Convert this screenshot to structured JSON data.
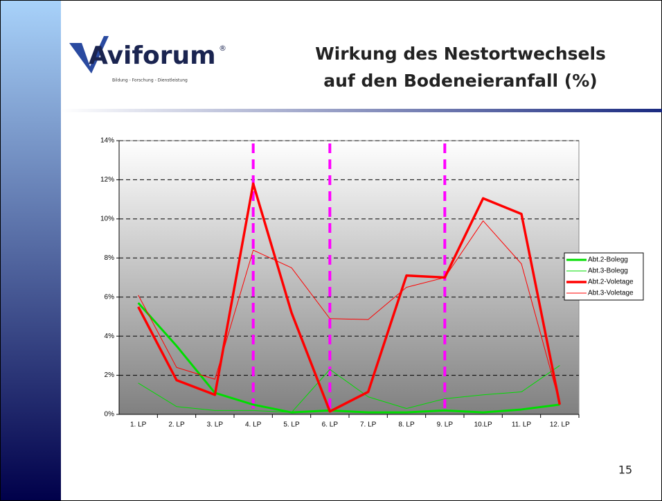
{
  "logo": {
    "name": "Aviforum",
    "mark": "®",
    "tagline": "Bildung - Forschung - Dienstleistung"
  },
  "page_number": "15",
  "chart_data": {
    "type": "line",
    "title": [
      "Wirkung des Nestortwechsels",
      "auf den Bodeneieranfall (%)"
    ],
    "categories": [
      "1. LP",
      "2. LP",
      "3. LP",
      "4. LP",
      "5. LP",
      "6. LP",
      "7. LP",
      "8. LP",
      "9. LP",
      "10.LP",
      "11. LP",
      "12. LP"
    ],
    "series": [
      {
        "name": "Abt.2-Bolegg",
        "color": "#00dd00",
        "line_width": 3,
        "values": [
          5.7,
          3.5,
          1.1,
          0.5,
          0.1,
          0.2,
          0.1,
          0.1,
          0.2,
          0.1,
          0.25,
          0.5
        ]
      },
      {
        "name": "Abt.3-Bolegg",
        "color": "#00dd00",
        "line_width": 1,
        "values": [
          1.6,
          0.4,
          0.2,
          0.2,
          0.1,
          2.3,
          0.9,
          0.3,
          0.8,
          1.0,
          1.15,
          2.5
        ]
      },
      {
        "name": "Abt.2-Voletage",
        "color": "#ff0000",
        "line_width": 3.5,
        "values": [
          5.5,
          1.75,
          1.0,
          11.8,
          5.2,
          0.15,
          1.15,
          7.1,
          7.0,
          11.05,
          10.25,
          0.5
        ]
      },
      {
        "name": "Abt.3-Voletage",
        "color": "#ff0000",
        "line_width": 1,
        "values": [
          6.1,
          2.4,
          1.8,
          8.4,
          7.5,
          4.9,
          4.85,
          6.5,
          7.0,
          9.9,
          7.7,
          0.55
        ]
      }
    ],
    "vertical_markers": [
      "4. LP",
      "6. LP",
      "9. LP"
    ],
    "marker_color": "#ff00ff",
    "ylim": [
      0,
      14
    ],
    "yticks": [
      {
        "value": 0,
        "label": "0%"
      },
      {
        "value": 2,
        "label": "2%"
      },
      {
        "value": 4,
        "label": "4%"
      },
      {
        "value": 6,
        "label": "6%"
      },
      {
        "value": 8,
        "label": "8%"
      },
      {
        "value": 10,
        "label": "10%"
      },
      {
        "value": 12,
        "label": "12%"
      },
      {
        "value": 14,
        "label": "14%"
      }
    ],
    "grid": true,
    "legend": "right"
  }
}
